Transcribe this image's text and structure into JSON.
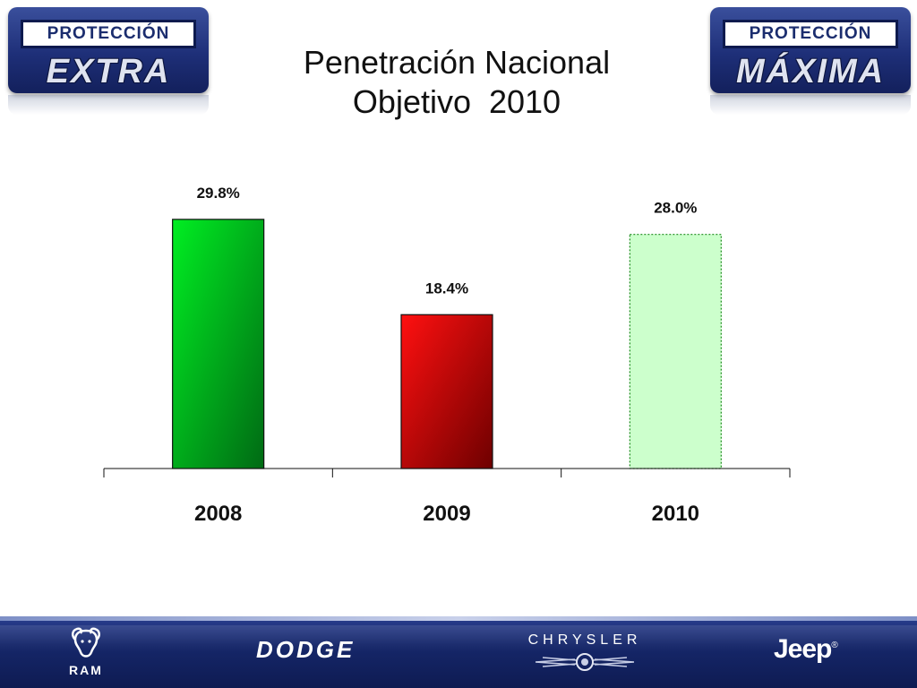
{
  "title": {
    "line1": "Penetración Nacional",
    "line2": "Objetivo  2010"
  },
  "badges": {
    "left": {
      "top": "PROTECCIÓN",
      "bottom": "EXTRA"
    },
    "right": {
      "top": "PROTECCIÓN",
      "bottom": "MÁXIMA"
    }
  },
  "chart_data": {
    "type": "bar",
    "categories": [
      "2008",
      "2009",
      "2010"
    ],
    "values": [
      29.8,
      18.4,
      28.0
    ],
    "data_labels": [
      "29.8%",
      "18.4%",
      "28.0%"
    ],
    "unit": "%",
    "ylim": [
      0,
      33
    ],
    "grid": false,
    "legend": "none",
    "bar_styles": [
      {
        "fill_top": "#00ee22",
        "fill_bottom": "#006a14",
        "stroke": "#111111",
        "dashed": false
      },
      {
        "fill_top": "#ff1010",
        "fill_bottom": "#6e0000",
        "stroke": "#111111",
        "dashed": false
      },
      {
        "fill_top": "#ccffcc",
        "fill_bottom": "#ccffcc",
        "stroke": "#1a8a1a",
        "dashed": true
      }
    ]
  },
  "footer": {
    "brands": {
      "ram": "RAM",
      "dodge": "DODGE",
      "chrysler": "CHRYSLER",
      "jeep": "Jeep",
      "jeep_mark": "®"
    },
    "icons": [
      "ram-head-icon",
      "chrysler-wings-icon"
    ]
  },
  "colors": {
    "footer_bg": "#16276a",
    "badge_bg": "#1e2f78"
  }
}
